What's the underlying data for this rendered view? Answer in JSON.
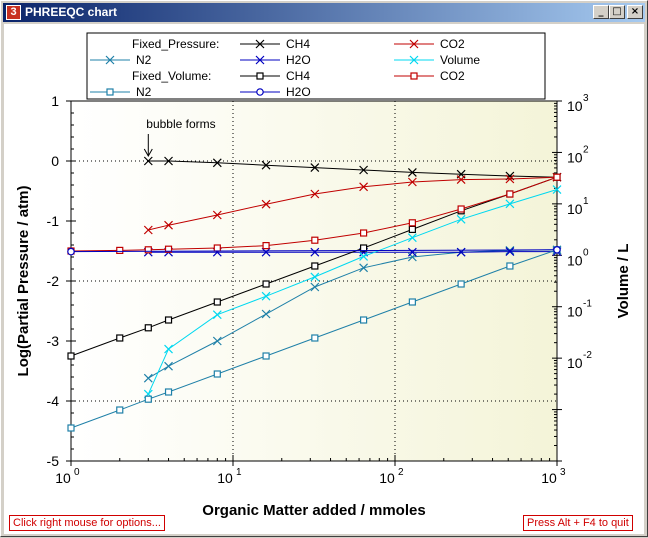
{
  "window": {
    "title": "PHREEQC chart",
    "icon_label": "3",
    "buttons": {
      "minimize": "_",
      "maximize": "□",
      "close": "×"
    }
  },
  "status": {
    "options_label": "Click right mouse for options...",
    "quit_label": "Press Alt + F4 to quit",
    "color": "#d00000"
  },
  "legend": {
    "group1": "Fixed_Pressure:",
    "group2": "Fixed_Volume:"
  },
  "annotation": {
    "text": "bubble forms",
    "x": 3,
    "y": 0
  },
  "chart_data": {
    "type": "line",
    "xlabel": "Organic Matter added / mmoles",
    "ylabel": "Log(Partial Pressure / atm)",
    "y2label": "Volume / L",
    "xscale": "log",
    "xlim": [
      1,
      1000
    ],
    "ylim": [
      -5,
      1
    ],
    "y2scale": "log",
    "y2lim": [
      0.0001,
      1000
    ],
    "xticks": [
      "1",
      "10",
      "100",
      "1000"
    ],
    "yticks": [
      "-5",
      "-4",
      "-3",
      "-2",
      "-1",
      "0",
      "1"
    ],
    "y2ticks": [
      "10^-2",
      "10^-1",
      "10^0",
      "10^1",
      "10^2",
      "10^3"
    ],
    "grid": "dotted at x=10,100 and y=0,-2,-4",
    "legend_position": "top",
    "series": [
      {
        "name": "CH4",
        "group": "Fixed_Pressure",
        "color": "#000000",
        "marker": "x",
        "axis": "left",
        "x": [
          3,
          4,
          8,
          16,
          32,
          64,
          128,
          256,
          512,
          1000
        ],
        "y": [
          0,
          0,
          -0.03,
          -0.07,
          -0.11,
          -0.15,
          -0.19,
          -0.22,
          -0.25,
          -0.27
        ]
      },
      {
        "name": "CO2",
        "group": "Fixed_Pressure",
        "color": "#c00000",
        "marker": "x",
        "axis": "left",
        "x": [
          3,
          4,
          8,
          16,
          32,
          64,
          128,
          256,
          512,
          1000
        ],
        "y": [
          -1.15,
          -1.07,
          -0.9,
          -0.72,
          -0.55,
          -0.43,
          -0.35,
          -0.31,
          -0.3,
          -0.27
        ]
      },
      {
        "name": "N2",
        "group": "Fixed_Pressure",
        "color": "#1f80a8",
        "marker": "x",
        "axis": "left",
        "x": [
          3,
          4,
          8,
          16,
          32,
          64,
          128,
          256,
          512,
          1000
        ],
        "y": [
          -3.62,
          -3.42,
          -3.0,
          -2.55,
          -2.1,
          -1.78,
          -1.6,
          -1.52,
          -1.49,
          -1.48
        ]
      },
      {
        "name": "H2O",
        "group": "Fixed_Pressure",
        "color": "#0000c0",
        "marker": "x",
        "axis": "left",
        "x": [
          3,
          4,
          8,
          16,
          32,
          64,
          128,
          256,
          512,
          1000
        ],
        "y": [
          -1.52,
          -1.52,
          -1.52,
          -1.52,
          -1.52,
          -1.52,
          -1.52,
          -1.52,
          -1.51,
          -1.51
        ]
      },
      {
        "name": "Volume",
        "group": "Fixed_Pressure",
        "color": "#00d8f0",
        "marker": "x",
        "axis": "right",
        "x": [
          3,
          4,
          8,
          16,
          32,
          64,
          128,
          256,
          512,
          1000
        ],
        "y": [
          0.002,
          0.015,
          0.07,
          0.16,
          0.38,
          0.95,
          2.2,
          5,
          10,
          19
        ]
      },
      {
        "name": "CH4",
        "group": "Fixed_Volume",
        "color": "#000000",
        "marker": "square",
        "axis": "left",
        "x": [
          1,
          2,
          3,
          4,
          8,
          16,
          32,
          64,
          128,
          256,
          512,
          1000
        ],
        "y": [
          -3.25,
          -2.95,
          -2.78,
          -2.65,
          -2.35,
          -2.05,
          -1.75,
          -1.45,
          -1.14,
          -0.83,
          -0.55,
          -0.27
        ]
      },
      {
        "name": "CO2",
        "group": "Fixed_Volume",
        "color": "#c00000",
        "marker": "square",
        "axis": "left",
        "x": [
          1,
          2,
          3,
          4,
          8,
          16,
          32,
          64,
          128,
          256,
          512,
          1000
        ],
        "y": [
          -1.5,
          -1.49,
          -1.48,
          -1.47,
          -1.45,
          -1.41,
          -1.32,
          -1.2,
          -1.03,
          -0.8,
          -0.55,
          -0.27
        ]
      },
      {
        "name": "N2",
        "group": "Fixed_Volume",
        "color": "#1f80a8",
        "marker": "square",
        "axis": "left",
        "x": [
          1,
          2,
          3,
          4,
          8,
          16,
          32,
          64,
          128,
          256,
          512,
          1000
        ],
        "y": [
          -4.45,
          -4.15,
          -3.97,
          -3.85,
          -3.55,
          -3.25,
          -2.95,
          -2.65,
          -2.35,
          -2.05,
          -1.75,
          -1.48
        ]
      },
      {
        "name": "H2O",
        "group": "Fixed_Volume",
        "color": "#0000c0",
        "marker": "circle",
        "axis": "left",
        "x": [
          1,
          1000
        ],
        "y": [
          -1.51,
          -1.48
        ]
      }
    ]
  }
}
